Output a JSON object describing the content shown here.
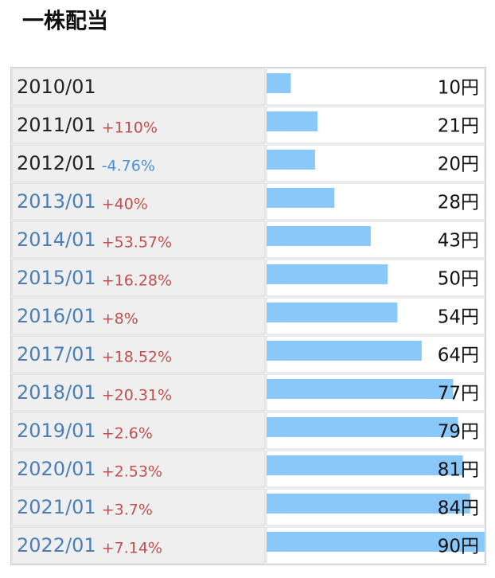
{
  "chart_data": {
    "type": "bar",
    "title": "一株配当",
    "categories": [
      "2010/01",
      "2011/01",
      "2012/01",
      "2013/01",
      "2014/01",
      "2015/01",
      "2016/01",
      "2017/01",
      "2018/01",
      "2019/01",
      "2020/01",
      "2021/01",
      "2022/01"
    ],
    "category_colors": [
      "#222222",
      "#222222",
      "#222222",
      "#4a7fb5",
      "#4a7fb5",
      "#4a7fb5",
      "#4a7fb5",
      "#4a7fb5",
      "#4a7fb5",
      "#4a7fb5",
      "#4a7fb5",
      "#4a7fb5",
      "#4a7fb5"
    ],
    "values": [
      10,
      21,
      20,
      28,
      43,
      50,
      54,
      64,
      77,
      79,
      81,
      84,
      90
    ],
    "value_labels": [
      "10円",
      "21円",
      "20円",
      "28円",
      "43円",
      "50円",
      "54円",
      "64円",
      "77円",
      "79円",
      "81円",
      "84円",
      "90円"
    ],
    "changes": [
      null,
      110,
      -4.76,
      40,
      53.57,
      16.28,
      8,
      18.52,
      20.31,
      2.6,
      2.53,
      3.7,
      7.14
    ],
    "change_labels": [
      null,
      "+110%",
      "-4.76%",
      "+40%",
      "+53.57%",
      "+16.28%",
      "+8%",
      "+18.52%",
      "+20.31%",
      "+2.6%",
      "+2.53%",
      "+3.7%",
      "+7.14%"
    ],
    "positive_color": "#c0504d",
    "negative_color": "#4a90d9",
    "color": "#8ac8fa",
    "xlim": [
      0,
      90
    ]
  }
}
